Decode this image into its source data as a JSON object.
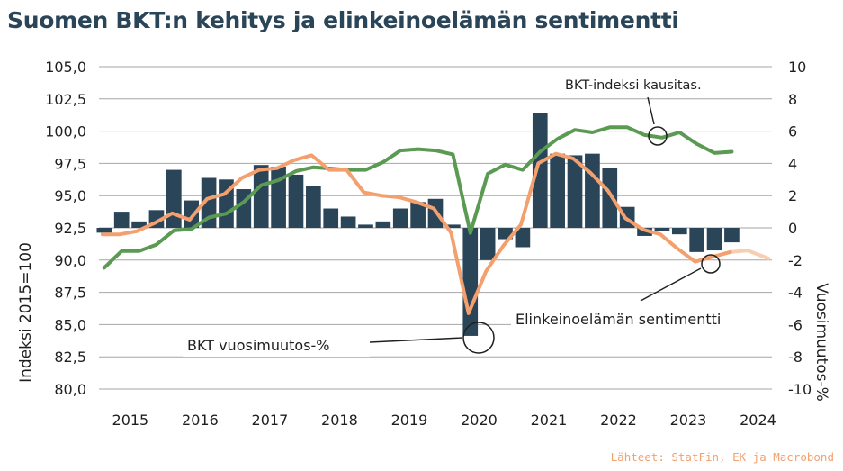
{
  "colors": {
    "title": "#2a4458",
    "bars": "#2a4458",
    "gdp_index": "#5a9a52",
    "sentiment": "#f4a06e",
    "sentiment_latest": "#f8cdb0",
    "grid": "#a6a6a6",
    "source": "#f4a06e"
  },
  "chart_data": {
    "type": "bar+line",
    "title": "Suomen BKT:n kehitys ja elinkeinoelämän sentimentti",
    "ylabel_left": "Indeksi 2015=100",
    "ylabel_right": "Vuosimuutos-%",
    "ylim_left": [
      80,
      105
    ],
    "ylim_right": [
      -10,
      10
    ],
    "yticks_left": [
      "105,0",
      "102,5",
      "100,0",
      "97,5",
      "95,0",
      "92,5",
      "90,0",
      "87,5",
      "85,0",
      "82,5",
      "80,0"
    ],
    "yticks_right": [
      "10",
      "8",
      "6",
      "4",
      "2",
      "0",
      "-2",
      "-4",
      "-6",
      "-8",
      "-10"
    ],
    "xlim": [
      2014.55,
      2024.2
    ],
    "x_ticks": [
      "2015",
      "2016",
      "2017",
      "2018",
      "2019",
      "2020",
      "2021",
      "2022",
      "2023",
      "2024"
    ],
    "x_tick_positions": [
      2015,
      2016,
      2017,
      2018,
      2019,
      2020,
      2021,
      2022,
      2023,
      2024
    ],
    "grid": "horizontal",
    "legend": "none",
    "series": [
      {
        "type": "bar",
        "axis": "right",
        "values": [
          {
            "x": 2014.625,
            "y": -0.3
          },
          {
            "x": 2014.875,
            "y": 1.0
          },
          {
            "x": 2015.125,
            "y": 0.4
          },
          {
            "x": 2015.375,
            "y": 1.1
          },
          {
            "x": 2015.625,
            "y": 3.6
          },
          {
            "x": 2015.875,
            "y": 1.7
          },
          {
            "x": 2016.125,
            "y": 3.1
          },
          {
            "x": 2016.375,
            "y": 3.0
          },
          {
            "x": 2016.625,
            "y": 2.4
          },
          {
            "x": 2016.875,
            "y": 3.9
          },
          {
            "x": 2017.125,
            "y": 3.8
          },
          {
            "x": 2017.375,
            "y": 3.3
          },
          {
            "x": 2017.625,
            "y": 2.6
          },
          {
            "x": 2017.875,
            "y": 1.2
          },
          {
            "x": 2018.125,
            "y": 0.7
          },
          {
            "x": 2018.375,
            "y": 0.2
          },
          {
            "x": 2018.625,
            "y": 0.4
          },
          {
            "x": 2018.875,
            "y": 1.2
          },
          {
            "x": 2019.125,
            "y": 1.6
          },
          {
            "x": 2019.375,
            "y": 1.8
          },
          {
            "x": 2019.625,
            "y": 0.2
          },
          {
            "x": 2019.875,
            "y": -6.7
          },
          {
            "x": 2020.125,
            "y": -2.0
          },
          {
            "x": 2020.375,
            "y": -0.7
          },
          {
            "x": 2020.625,
            "y": -1.2
          },
          {
            "x": 2020.875,
            "y": 7.1
          },
          {
            "x": 2021.125,
            "y": 4.6
          },
          {
            "x": 2021.375,
            "y": 4.5
          },
          {
            "x": 2021.625,
            "y": 4.6
          },
          {
            "x": 2021.875,
            "y": 3.7
          },
          {
            "x": 2022.125,
            "y": 1.3
          },
          {
            "x": 2022.375,
            "y": -0.5
          },
          {
            "x": 2022.625,
            "y": -0.2
          },
          {
            "x": 2022.875,
            "y": -0.4
          },
          {
            "x": 2023.125,
            "y": -1.5
          },
          {
            "x": 2023.375,
            "y": -1.4
          },
          {
            "x": 2023.625,
            "y": -0.9
          }
        ]
      },
      {
        "type": "line",
        "axis": "left",
        "values": [
          {
            "x": 2014.625,
            "y": 89.4
          },
          {
            "x": 2014.875,
            "y": 90.7
          },
          {
            "x": 2015.125,
            "y": 90.7
          },
          {
            "x": 2015.375,
            "y": 91.2
          },
          {
            "x": 2015.625,
            "y": 92.3
          },
          {
            "x": 2015.875,
            "y": 92.4
          },
          {
            "x": 2016.125,
            "y": 93.3
          },
          {
            "x": 2016.375,
            "y": 93.6
          },
          {
            "x": 2016.625,
            "y": 94.5
          },
          {
            "x": 2016.875,
            "y": 95.8
          },
          {
            "x": 2017.125,
            "y": 96.2
          },
          {
            "x": 2017.375,
            "y": 96.9
          },
          {
            "x": 2017.625,
            "y": 97.2
          },
          {
            "x": 2017.875,
            "y": 97.1
          },
          {
            "x": 2018.125,
            "y": 97.0
          },
          {
            "x": 2018.375,
            "y": 97.0
          },
          {
            "x": 2018.625,
            "y": 97.6
          },
          {
            "x": 2018.875,
            "y": 98.5
          },
          {
            "x": 2019.125,
            "y": 98.6
          },
          {
            "x": 2019.375,
            "y": 98.5
          },
          {
            "x": 2019.625,
            "y": 98.2
          },
          {
            "x": 2019.875,
            "y": 92.1
          },
          {
            "x": 2020.125,
            "y": 96.7
          },
          {
            "x": 2020.375,
            "y": 97.4
          },
          {
            "x": 2020.625,
            "y": 97.0
          },
          {
            "x": 2020.875,
            "y": 98.4
          },
          {
            "x": 2021.125,
            "y": 99.4
          },
          {
            "x": 2021.375,
            "y": 100.1
          },
          {
            "x": 2021.625,
            "y": 99.9
          },
          {
            "x": 2021.875,
            "y": 100.3
          },
          {
            "x": 2022.125,
            "y": 100.3
          },
          {
            "x": 2022.375,
            "y": 99.7
          },
          {
            "x": 2022.625,
            "y": 99.5
          },
          {
            "x": 2022.875,
            "y": 99.9
          },
          {
            "x": 2023.125,
            "y": 99.0
          },
          {
            "x": 2023.375,
            "y": 98.3
          },
          {
            "x": 2023.625,
            "y": 98.4
          }
        ]
      },
      {
        "type": "line",
        "axis": "right",
        "values": [
          {
            "x": 2014.6,
            "y": -0.4
          },
          {
            "x": 2014.85,
            "y": -0.4
          },
          {
            "x": 2015.1,
            "y": -0.2
          },
          {
            "x": 2015.35,
            "y": 0.3
          },
          {
            "x": 2015.6,
            "y": 0.9
          },
          {
            "x": 2015.85,
            "y": 0.5
          },
          {
            "x": 2016.1,
            "y": 1.8
          },
          {
            "x": 2016.35,
            "y": 2.1
          },
          {
            "x": 2016.6,
            "y": 3.1
          },
          {
            "x": 2016.85,
            "y": 3.6
          },
          {
            "x": 2017.1,
            "y": 3.7
          },
          {
            "x": 2017.35,
            "y": 4.2
          },
          {
            "x": 2017.6,
            "y": 4.5
          },
          {
            "x": 2017.85,
            "y": 3.6
          },
          {
            "x": 2018.1,
            "y": 3.6
          },
          {
            "x": 2018.35,
            "y": 2.2
          },
          {
            "x": 2018.6,
            "y": 2.0
          },
          {
            "x": 2018.85,
            "y": 1.9
          },
          {
            "x": 2019.1,
            "y": 1.6
          },
          {
            "x": 2019.35,
            "y": 1.2
          },
          {
            "x": 2019.6,
            "y": -0.3
          },
          {
            "x": 2019.85,
            "y": -5.3
          },
          {
            "x": 2020.1,
            "y": -2.7
          },
          {
            "x": 2020.35,
            "y": -1.1
          },
          {
            "x": 2020.6,
            "y": 0.2
          },
          {
            "x": 2020.85,
            "y": 4.0
          },
          {
            "x": 2021.1,
            "y": 4.6
          },
          {
            "x": 2021.35,
            "y": 4.3
          },
          {
            "x": 2021.6,
            "y": 3.4
          },
          {
            "x": 2021.85,
            "y": 2.3
          },
          {
            "x": 2022.1,
            "y": 0.6
          },
          {
            "x": 2022.35,
            "y": -0.1
          },
          {
            "x": 2022.6,
            "y": -0.4
          },
          {
            "x": 2022.85,
            "y": -1.3
          },
          {
            "x": 2023.1,
            "y": -2.1
          },
          {
            "x": 2023.35,
            "y": -1.8
          },
          {
            "x": 2023.6,
            "y": -1.5
          }
        ],
        "latest": [
          {
            "x": 2023.6,
            "y": -1.5
          },
          {
            "x": 2023.85,
            "y": -1.4
          },
          {
            "x": 2024.15,
            "y": -1.9
          }
        ]
      }
    ],
    "annotations": {
      "gdp_index_label": "BKT-indeksi kausitas.",
      "sentiment_label": "Elinkeinoelämän sentimentti",
      "gdp_change_label": "BKT vuosimuutos-%"
    }
  },
  "source": "Lähteet: StatFin, EK ja Macrobond"
}
